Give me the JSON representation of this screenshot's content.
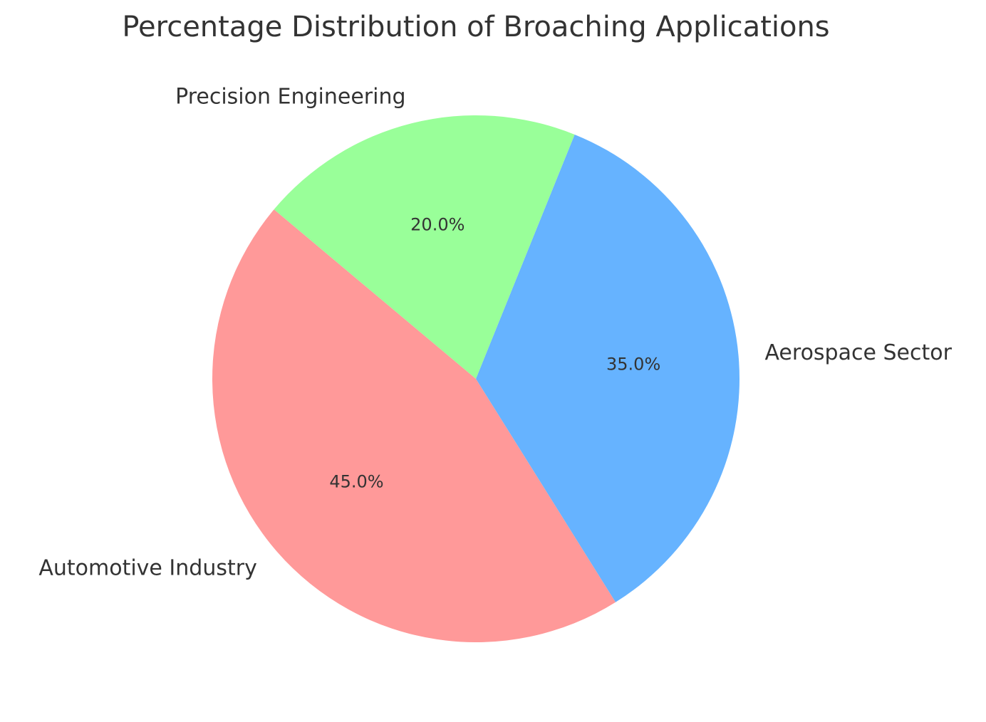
{
  "chart_data": {
    "type": "pie",
    "title": "Percentage Distribution of Broaching Applications",
    "categories": [
      "Automotive Industry",
      "Aerospace Sector",
      "Precision Engineering"
    ],
    "values": [
      45,
      35,
      20
    ],
    "value_labels": [
      "45.0%",
      "35.0%",
      "20.0%"
    ],
    "colors": [
      "#ff9999",
      "#66b3ff",
      "#99ff99"
    ],
    "startangle": 140
  }
}
